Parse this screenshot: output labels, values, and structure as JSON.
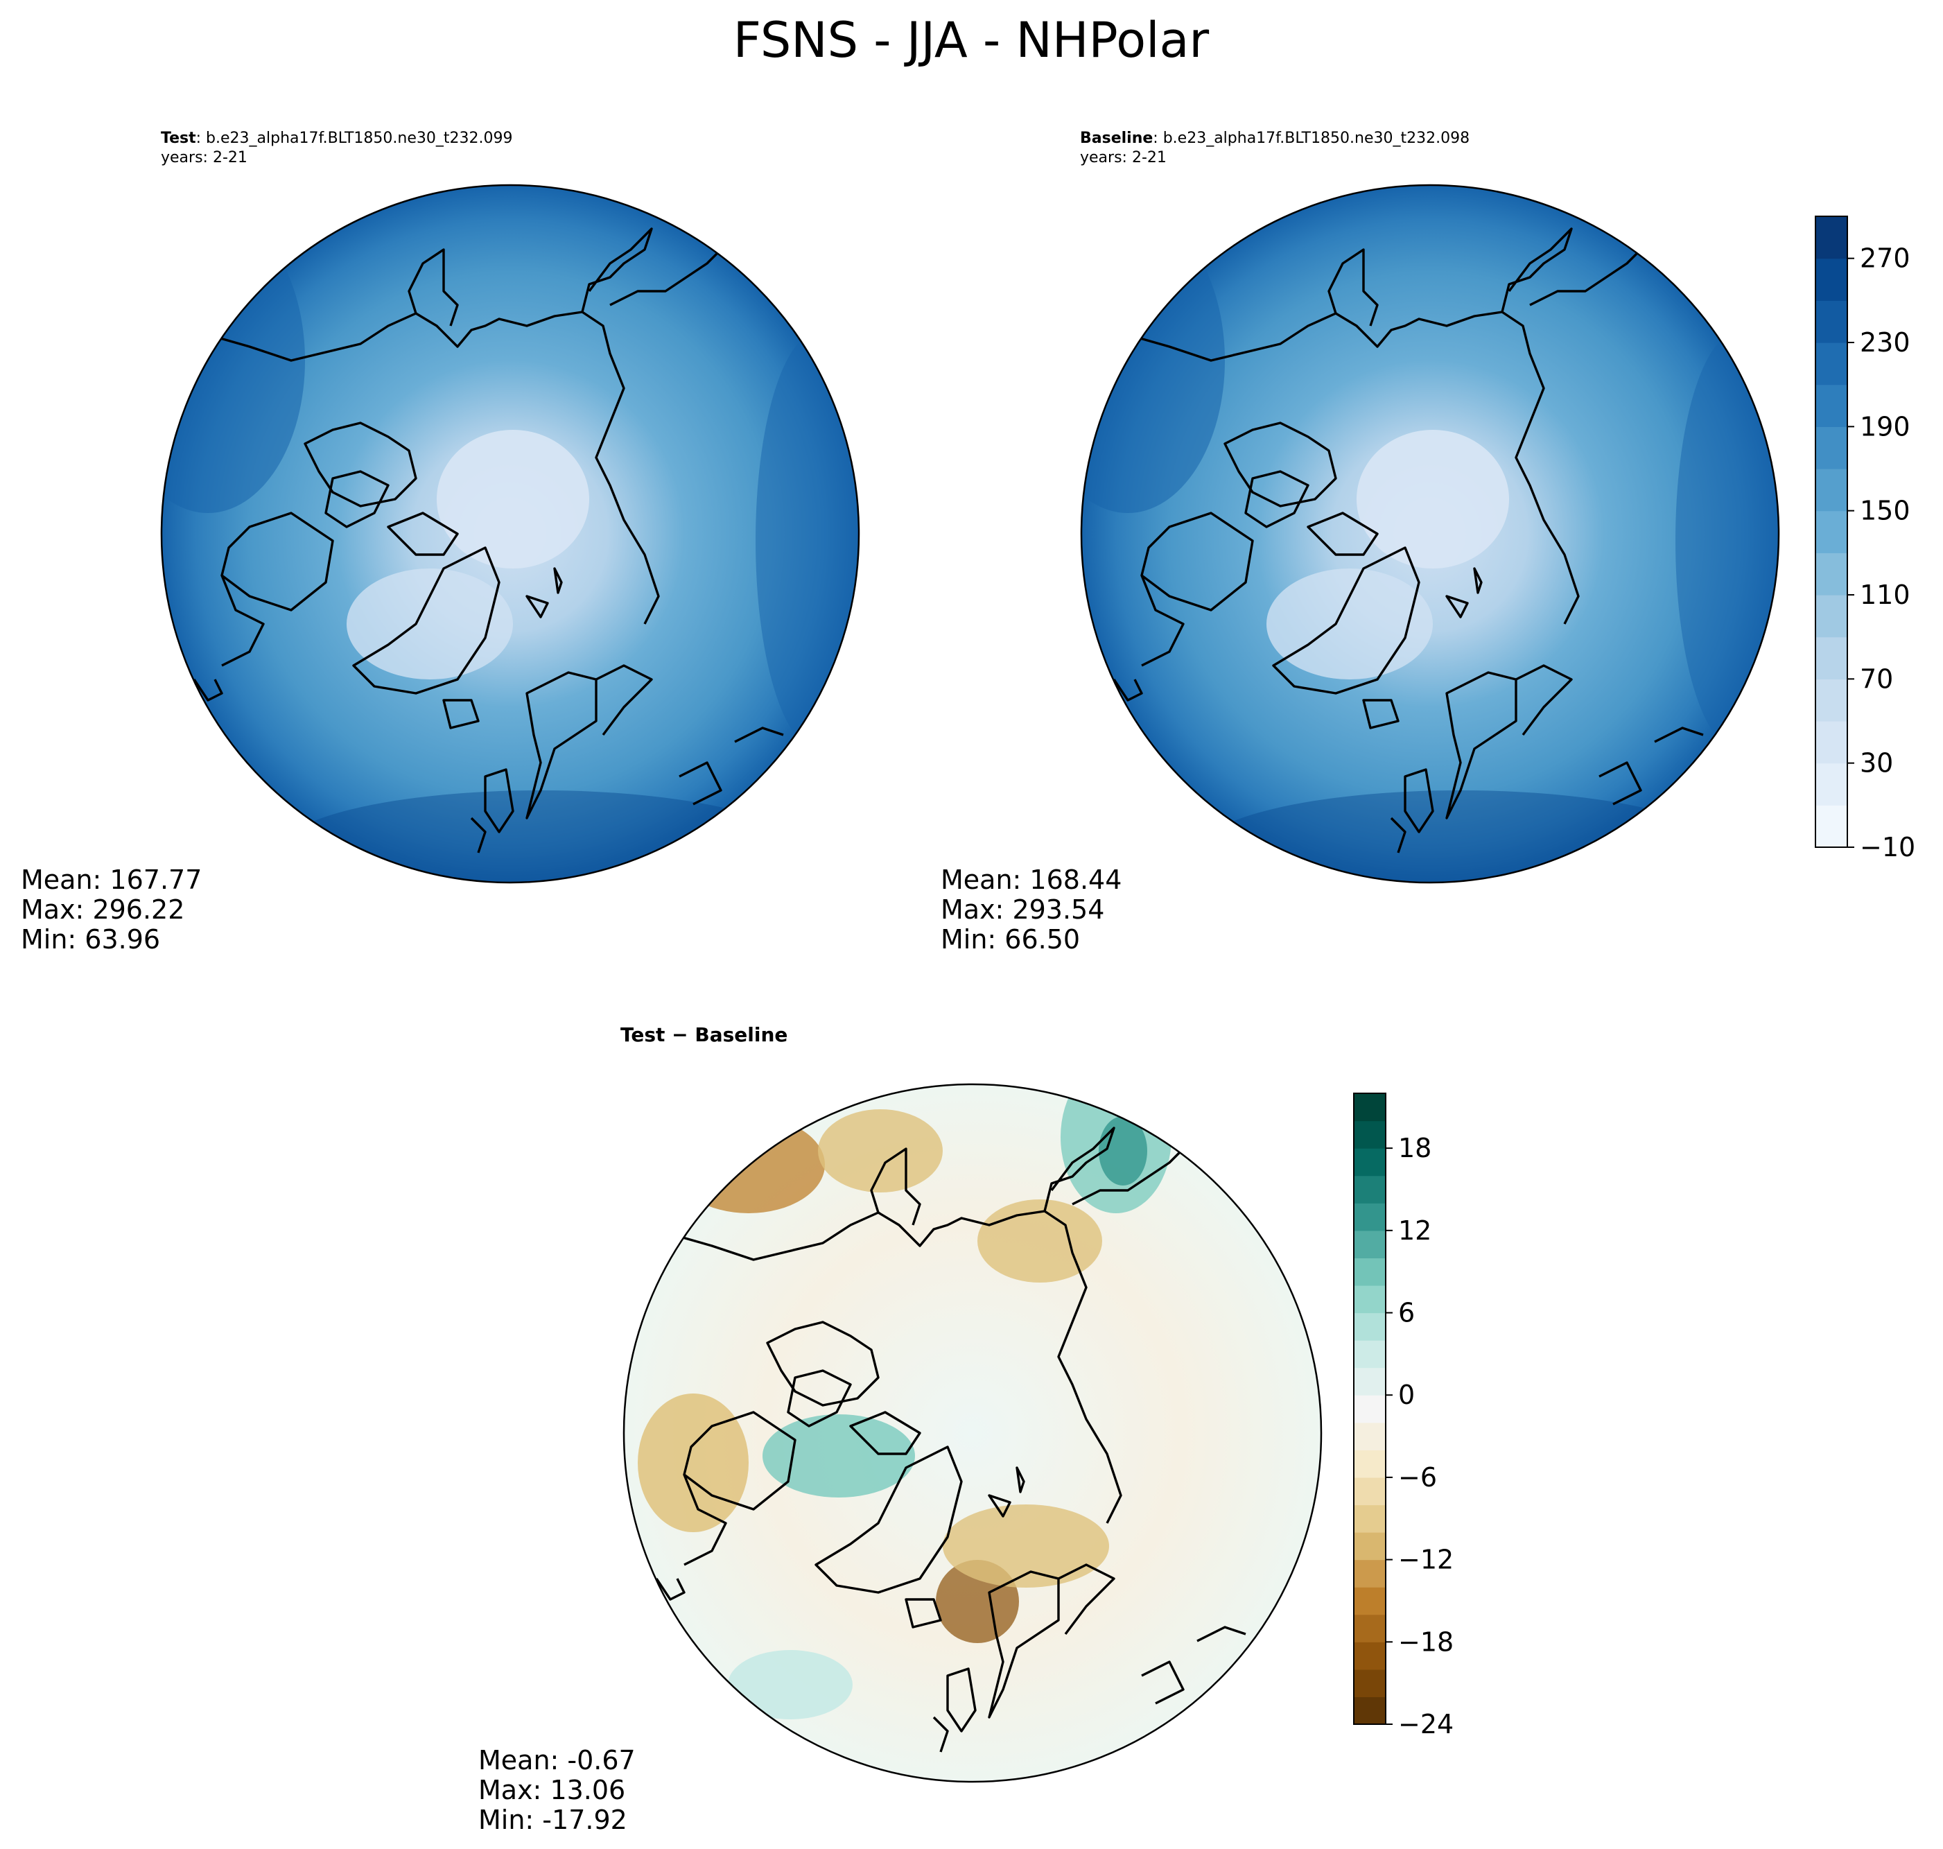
{
  "figure": {
    "title": "FSNS - JJA - NHPolar"
  },
  "colors": {
    "blues": [
      "#f7fbff",
      "#e3eef9",
      "#d0e1f2",
      "#b7d4ea",
      "#94c4df",
      "#6aaed6",
      "#4a98c9",
      "#2e7ebc",
      "#1764ab",
      "#084a91",
      "#08306b"
    ],
    "diverging": [
      "#543005",
      "#8c510a",
      "#bf812d",
      "#dfc27d",
      "#f6e8c3",
      "#f5f5f5",
      "#c7eae5",
      "#80cdc1",
      "#35978f",
      "#01665e",
      "#003c30"
    ],
    "coastline": "#000000"
  },
  "chart_data": [
    {
      "type": "heatmap",
      "panel": "test",
      "label_bold": "Test",
      "label_rest": ": b.e23_alpha17f.BLT1850.ne30_t232.099",
      "years": "years: 2-21",
      "projection": "north polar stereographic",
      "stats": {
        "mean": "Mean: 167.77",
        "max": "Max: 296.22",
        "min": "Min: 63.96"
      }
    },
    {
      "type": "heatmap",
      "panel": "baseline",
      "label_bold": "Baseline",
      "label_rest": ": b.e23_alpha17f.BLT1850.ne30_t232.098",
      "years": "years: 2-21",
      "projection": "north polar stereographic",
      "stats": {
        "mean": "Mean: 168.44",
        "max": "Max: 293.54",
        "min": "Min: 66.50"
      },
      "colorbar": {
        "range": [
          -10,
          290
        ],
        "ticks": [
          -10,
          30,
          70,
          110,
          150,
          190,
          230,
          270
        ],
        "tick_labels": [
          "−10",
          "30",
          "70",
          "110",
          "150",
          "190",
          "230",
          "270"
        ]
      }
    },
    {
      "type": "heatmap",
      "panel": "difference",
      "label_bold": "Test − Baseline",
      "projection": "north polar stereographic",
      "stats": {
        "mean": "Mean: -0.67",
        "max": "Max: 13.06",
        "min": "Min: -17.92"
      },
      "colorbar": {
        "range": [
          -24,
          22
        ],
        "ticks": [
          -24,
          -18,
          -12,
          -6,
          0,
          6,
          12,
          18
        ],
        "tick_labels": [
          "−24",
          "−18",
          "−12",
          "−6",
          "0",
          "6",
          "12",
          "18"
        ]
      }
    }
  ]
}
